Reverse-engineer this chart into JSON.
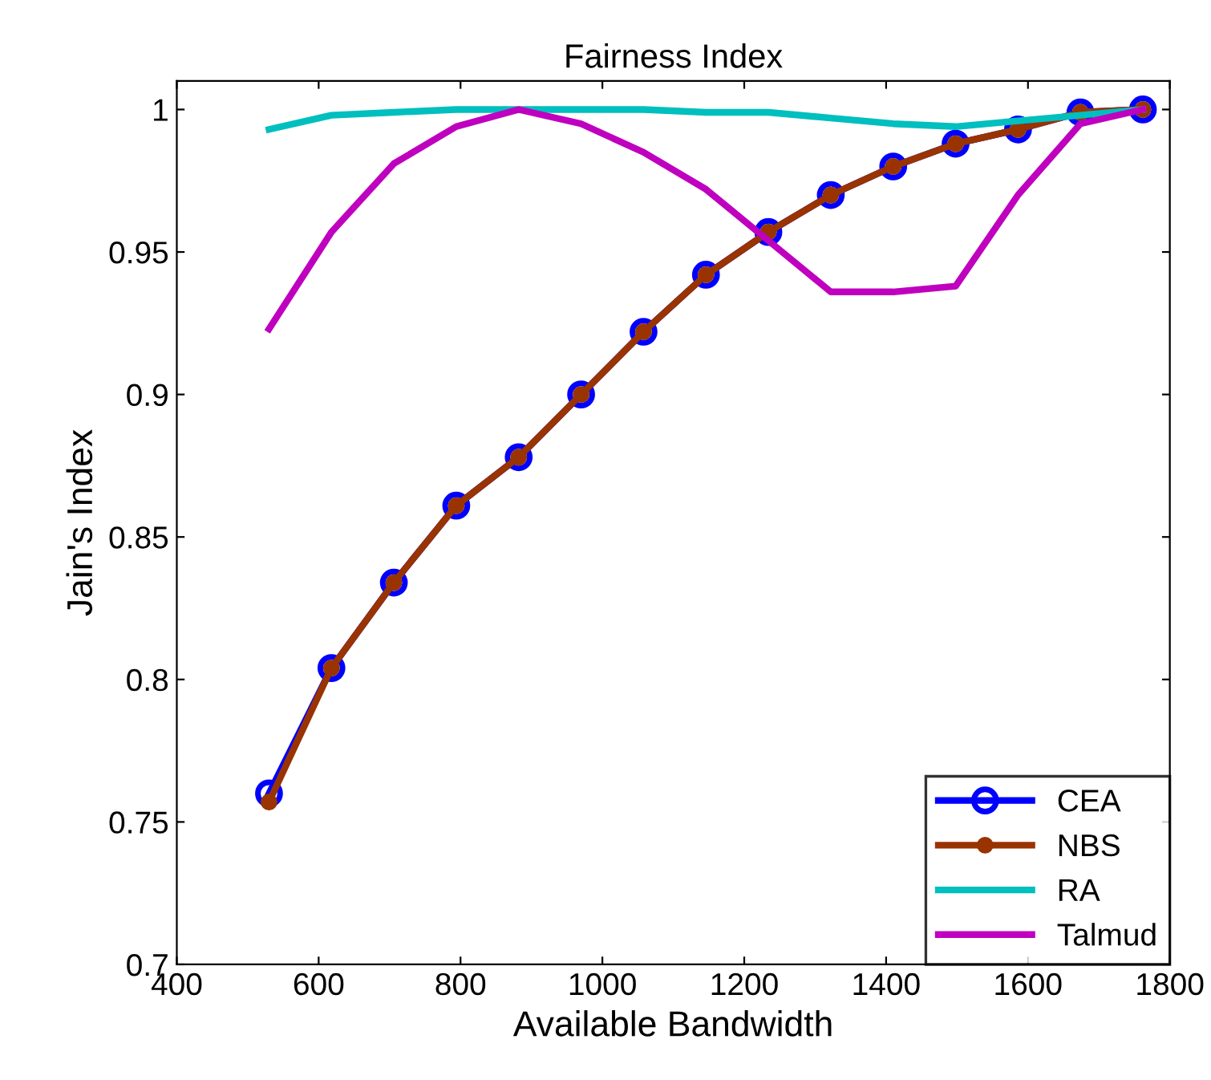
{
  "chart_data": {
    "type": "line",
    "title": "Fairness Index",
    "xlabel": "Available Bandwidth",
    "ylabel": "Jain's Index",
    "x": [
      530,
      618,
      706,
      794,
      882,
      970,
      1058,
      1146,
      1234,
      1322,
      1410,
      1498,
      1586,
      1674,
      1762
    ],
    "series": [
      {
        "name": "CEA",
        "color": "#0000ff",
        "marker": "circle",
        "values": [
          0.76,
          0.804,
          0.834,
          0.861,
          0.878,
          0.9,
          0.922,
          0.942,
          0.957,
          0.97,
          0.98,
          0.988,
          0.993,
          0.999,
          1.0
        ]
      },
      {
        "name": "NBS",
        "color": "#993300",
        "marker": "dot",
        "values": [
          0.757,
          0.804,
          0.834,
          0.861,
          0.878,
          0.9,
          0.922,
          0.942,
          0.957,
          0.97,
          0.98,
          0.988,
          0.993,
          0.999,
          1.0
        ]
      },
      {
        "name": "RA",
        "color": "#00bfbf",
        "marker": "none",
        "values": [
          0.993,
          0.998,
          0.999,
          1.0,
          1.0,
          1.0,
          1.0,
          0.999,
          0.999,
          0.997,
          0.995,
          0.994,
          0.996,
          0.998,
          1.0
        ]
      },
      {
        "name": "Talmud",
        "color": "#bf00bf",
        "marker": "none",
        "values": [
          0.923,
          0.957,
          0.981,
          0.994,
          1.0,
          0.995,
          0.985,
          0.972,
          0.954,
          0.936,
          0.936,
          0.938,
          0.97,
          0.995,
          1.0
        ]
      }
    ],
    "xlim": [
      400,
      1800
    ],
    "xticks": [
      400,
      600,
      800,
      1000,
      1200,
      1400,
      1600,
      1800
    ],
    "ylim": [
      0.7,
      1.01
    ],
    "yticks": [
      0.7,
      0.75,
      0.8,
      0.85,
      0.9,
      0.95,
      1
    ],
    "grid": false,
    "legend": "bottom right",
    "line_style": "solid"
  }
}
